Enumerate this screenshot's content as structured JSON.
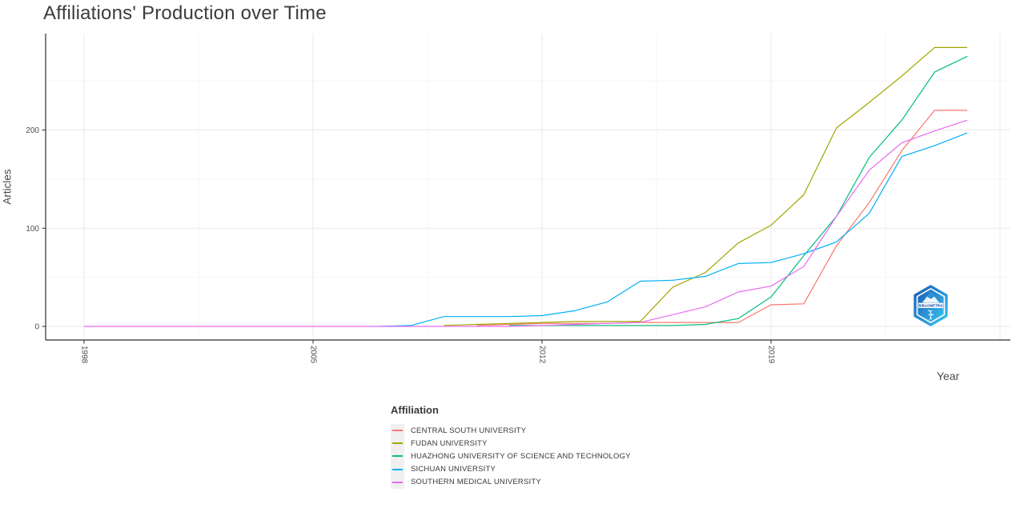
{
  "title": "Affiliations' Production over Time",
  "axis": {
    "x_title": "Year",
    "y_title": "Articles"
  },
  "legend": {
    "title": "Affiliation"
  },
  "watermark": {
    "label": "BIBLIOMETRIX"
  },
  "colors": {
    "title_text": "#3c3c3c",
    "axis_line": "#2f2f2f",
    "tick_label": "#4d4d4d",
    "grid_major": "#e9e9e9",
    "grid_minor": "#f3f3f3",
    "legend_key_bg": "#f0f0f0"
  },
  "chart_data": {
    "type": "line",
    "title": "Affiliations' Production over Time",
    "xlabel": "Year",
    "ylabel": "Articles",
    "legend_title": "Affiliation",
    "legend_position": "bottom",
    "grid": "major+minor",
    "xlim": [
      1996.8,
      2026.3
    ],
    "ylim": [
      0,
      295
    ],
    "x_ticks": [
      1998,
      2005,
      2012,
      2019
    ],
    "y_ticks": [
      0,
      100,
      200
    ],
    "x_grid_major": [
      1998,
      2005,
      2012,
      2019,
      2026
    ],
    "x_grid_minor": [
      2001.5,
      2008.5,
      2015.5,
      2022.5
    ],
    "y_grid_major": [
      0,
      100,
      200
    ],
    "y_grid_minor": [
      50,
      150,
      250
    ],
    "x": [
      1998,
      1999,
      2000,
      2001,
      2002,
      2003,
      2004,
      2005,
      2006,
      2007,
      2008,
      2009,
      2010,
      2011,
      2012,
      2013,
      2014,
      2015,
      2016,
      2017,
      2018,
      2019,
      2020,
      2021,
      2022,
      2023,
      2024,
      2025
    ],
    "series": [
      {
        "name": "CENTRAL SOUTH UNIVERSITY",
        "color": "#F8766D",
        "values": [
          null,
          null,
          null,
          null,
          null,
          null,
          null,
          null,
          null,
          null,
          null,
          null,
          1,
          2,
          3,
          3,
          3,
          4,
          4,
          4,
          4,
          22,
          23,
          82,
          126,
          179,
          220,
          220
        ]
      },
      {
        "name": "FUDAN UNIVERSITY",
        "color": "#A3A500",
        "values": [
          null,
          null,
          null,
          null,
          null,
          null,
          null,
          null,
          null,
          null,
          null,
          1,
          2,
          3,
          4,
          5,
          5,
          5,
          40,
          55,
          85,
          103,
          134,
          202,
          228,
          255,
          284,
          284
        ]
      },
      {
        "name": "HUAZHONG UNIVERSITY OF SCIENCE AND TECHNOLOGY",
        "color": "#00BF7D",
        "values": [
          null,
          null,
          null,
          null,
          null,
          null,
          null,
          null,
          null,
          null,
          null,
          null,
          null,
          1,
          1,
          1,
          1,
          1,
          1,
          2,
          8,
          30,
          72,
          112,
          172,
          210,
          259,
          275
        ]
      },
      {
        "name": "SICHUAN UNIVERSITY",
        "color": "#00B0F6",
        "values": [
          null,
          null,
          null,
          null,
          null,
          null,
          null,
          null,
          null,
          0,
          1,
          10,
          10,
          10,
          11,
          16,
          25,
          46,
          47,
          51,
          64,
          65,
          74,
          86,
          115,
          173,
          184,
          197
        ]
      },
      {
        "name": "SOUTHERN MEDICAL UNIVERSITY",
        "color": "#E76BF3",
        "values": [
          0,
          0,
          0,
          0,
          0,
          0,
          0,
          0,
          0,
          0,
          0,
          0,
          0,
          0,
          1,
          2,
          3,
          4,
          12,
          20,
          35,
          41,
          61,
          112,
          159,
          187,
          199,
          210
        ]
      }
    ]
  }
}
